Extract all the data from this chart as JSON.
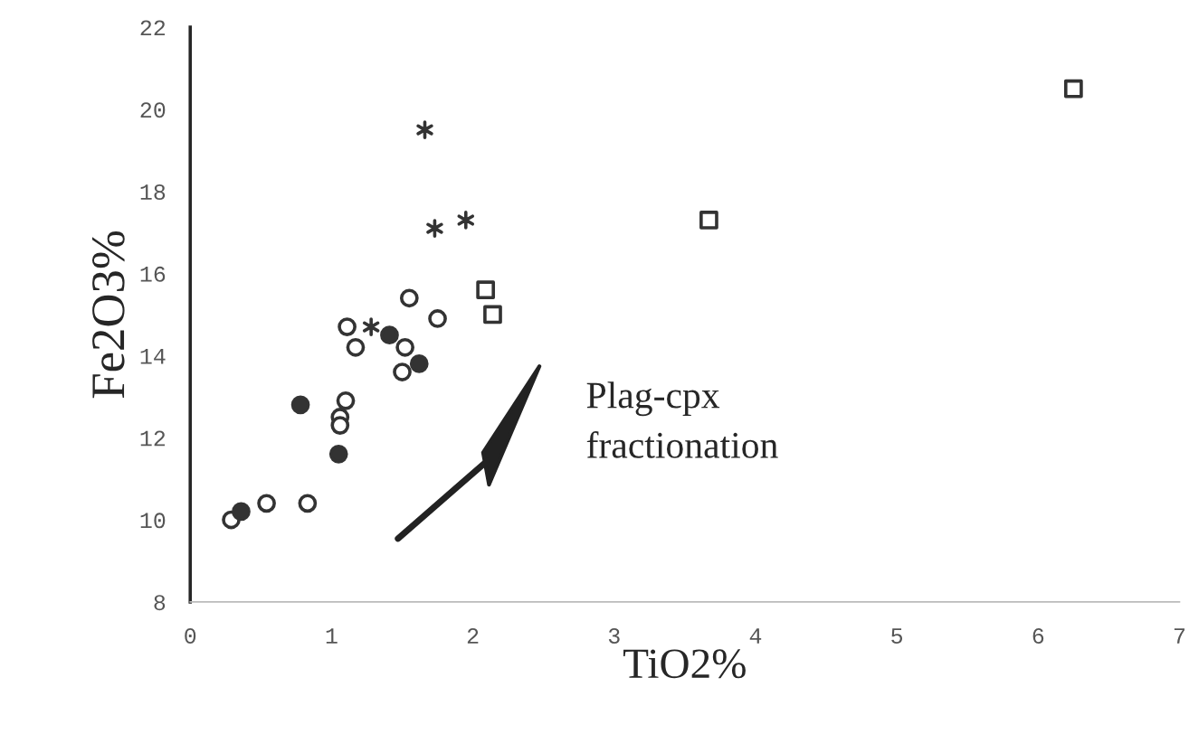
{
  "chart_data": {
    "type": "scatter",
    "xlabel": "TiO2%",
    "ylabel": "Fe2O3%",
    "xlim": [
      0,
      7
    ],
    "ylim": [
      8,
      22
    ],
    "xticks": [
      0,
      1,
      2,
      3,
      4,
      5,
      6,
      7
    ],
    "yticks": [
      8,
      10,
      12,
      14,
      16,
      18,
      20,
      22
    ],
    "grid": false,
    "legend": false,
    "annotations": [
      "Plag-cpx fractionation"
    ],
    "series": [
      {
        "color": "#ffffff",
        "marker": "circle",
        "x": [
          0.29,
          0.54,
          0.83,
          1.1,
          1.06,
          1.06,
          1.11,
          1.17,
          1.55,
          1.75,
          1.52,
          1.5
        ],
        "values": [
          10.0,
          10.4,
          10.4,
          12.9,
          12.5,
          12.3,
          14.7,
          14.2,
          15.4,
          14.9,
          14.2,
          13.6
        ]
      },
      {
        "color": "#333333",
        "marker": "circle",
        "x": [
          0.36,
          0.78,
          1.05,
          1.41,
          1.62
        ],
        "values": [
          10.2,
          12.8,
          11.6,
          14.5,
          13.8
        ]
      },
      {
        "color": "#333333",
        "marker": "cross",
        "x": [
          1.28,
          1.66,
          1.73,
          1.95
        ],
        "values": [
          14.7,
          19.5,
          17.1,
          17.3
        ]
      },
      {
        "color": "#ffffff",
        "marker": "square",
        "x": [
          2.09,
          2.14,
          3.67,
          6.25
        ],
        "values": [
          15.6,
          15.0,
          17.3,
          20.5
        ]
      }
    ]
  }
}
